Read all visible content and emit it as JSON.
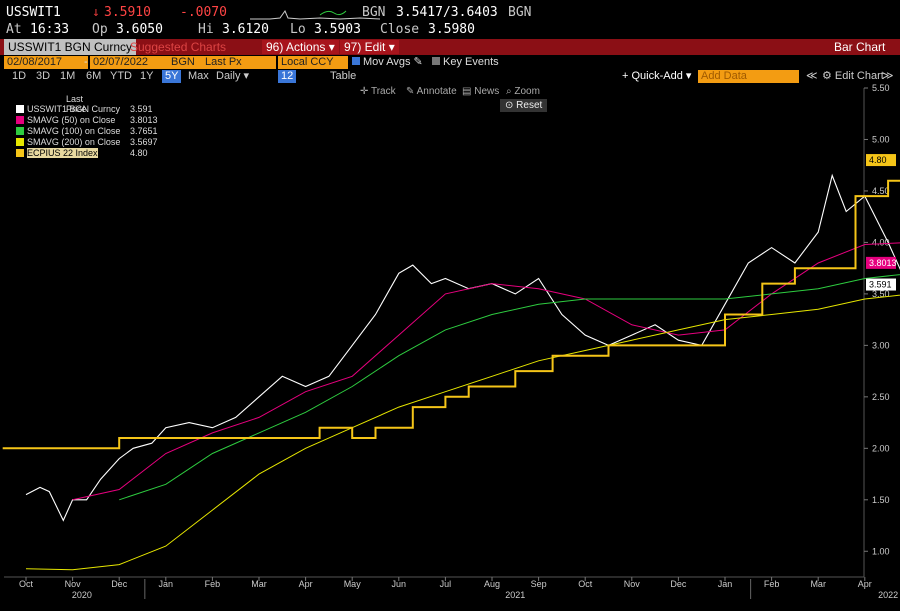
{
  "quote": {
    "ticker": "USSWIT1",
    "last": "3.5910",
    "change": "-.0070",
    "source": "BGN",
    "bid_ask": "3.5417/3.6403",
    "source2": "BGN",
    "at_label": "At",
    "time": "16:33",
    "op_label": "Op",
    "open": "3.6050",
    "hi_label": "Hi",
    "high": "3.6120",
    "lo_label": "Lo",
    "low": "3.5903",
    "close_label": "Close",
    "close": "3.5980"
  },
  "toolbar": {
    "security": "USSWIT1 BGN Curncy",
    "suggested": "Suggested Charts",
    "actions": "96) Actions ▾",
    "edit": "97) Edit ▾",
    "chart_type": "Bar Chart"
  },
  "controls": {
    "start_date": "02/08/2017",
    "end_date": "02/07/2022",
    "source": "BGN",
    "field": "Last Px",
    "currency": "Local CCY",
    "mov_avgs": "Mov Avgs",
    "key_events": "Key Events"
  },
  "periods": [
    "1D",
    "3D",
    "1M",
    "6M",
    "YTD",
    "1Y",
    "5Y",
    "Max"
  ],
  "selected_period": "5Y",
  "frequency": "Daily ▾",
  "freq_num": "12",
  "table_label": "Table",
  "quick_add": "+ Quick-Add ▾",
  "add_data": "Add Data",
  "edit_chart": "⚙ Edit Chart",
  "chart_tools": {
    "track": "Track",
    "annotate": "Annotate",
    "news": "News",
    "zoom": "Zoom",
    "reset": "Reset"
  },
  "legend": {
    "header": "Last Price",
    "items": [
      {
        "label": "USSWIT1 BGN Curncy",
        "value": "3.591",
        "color": "#ffffff"
      },
      {
        "label": "SMAVG (50)  on Close",
        "value": "3.8013",
        "color": "#e6007e"
      },
      {
        "label": "SMAVG (100)  on Close",
        "value": "3.7651",
        "color": "#2ecc40"
      },
      {
        "label": "SMAVG (200)  on Close",
        "value": "3.5697",
        "color": "#e6e600"
      },
      {
        "label": "ECPIUS 22 Index",
        "value": "4.80",
        "color": "#f5c518"
      }
    ]
  },
  "annotation": "1.19",
  "last_tags": {
    "cpi": "4.80",
    "sma50": "3.8013",
    "price": "3.591"
  },
  "chart_data": {
    "type": "line",
    "title": "",
    "xlabel": "",
    "ylabel": "",
    "ylim": [
      0.75,
      5.5
    ],
    "y_ticks": [
      "5.50",
      "5.00",
      "4.50",
      "4.00",
      "3.50",
      "3.00",
      "2.50",
      "2.00",
      "1.50",
      "1.00"
    ],
    "x_ticks": [
      "Oct",
      "Nov",
      "Dec",
      "Jan",
      "Feb",
      "Mar",
      "Apr",
      "May",
      "Jun",
      "Jul",
      "Aug",
      "Sep",
      "Oct",
      "Nov",
      "Dec",
      "Jan",
      "Feb",
      "Mar",
      "Apr"
    ],
    "year_labels": [
      "2020",
      "2021",
      "2022"
    ],
    "series": [
      {
        "name": "USSWIT1 BGN Curncy",
        "color": "#ffffff",
        "points": [
          [
            0,
            1.55
          ],
          [
            0.3,
            1.62
          ],
          [
            0.5,
            1.58
          ],
          [
            0.8,
            1.3
          ],
          [
            1,
            1.5
          ],
          [
            1.3,
            1.5
          ],
          [
            1.6,
            1.7
          ],
          [
            2,
            1.9
          ],
          [
            2.3,
            2.0
          ],
          [
            2.7,
            2.05
          ],
          [
            3,
            2.2
          ],
          [
            3.5,
            2.25
          ],
          [
            4,
            2.2
          ],
          [
            4.5,
            2.3
          ],
          [
            5,
            2.5
          ],
          [
            5.5,
            2.7
          ],
          [
            6,
            2.6
          ],
          [
            6.5,
            2.7
          ],
          [
            7,
            3.0
          ],
          [
            7.5,
            3.3
          ],
          [
            8,
            3.7
          ],
          [
            8.3,
            3.78
          ],
          [
            8.7,
            3.6
          ],
          [
            9,
            3.65
          ],
          [
            9.5,
            3.55
          ],
          [
            10,
            3.6
          ],
          [
            10.5,
            3.5
          ],
          [
            11,
            3.65
          ],
          [
            11.5,
            3.3
          ],
          [
            12,
            3.1
          ],
          [
            12.5,
            3.0
          ],
          [
            13,
            3.1
          ],
          [
            13.5,
            3.2
          ],
          [
            14,
            3.05
          ],
          [
            14.5,
            3.0
          ],
          [
            15,
            3.4
          ],
          [
            15.5,
            3.8
          ],
          [
            16,
            3.95
          ],
          [
            16.5,
            3.8
          ],
          [
            17,
            4.1
          ],
          [
            17.3,
            4.65
          ],
          [
            17.6,
            4.3
          ],
          [
            18,
            4.45
          ],
          [
            18.5,
            4.0
          ],
          [
            18.8,
            3.7
          ],
          [
            19.2,
            3.85
          ],
          [
            19.5,
            3.8
          ],
          [
            20,
            3.9
          ],
          [
            20.4,
            3.7
          ],
          [
            20.8,
            3.65
          ],
          [
            21,
            3.6
          ],
          [
            21.3,
            3.591
          ]
        ]
      },
      {
        "name": "SMAVG (50)  on Close",
        "color": "#e6007e",
        "points": [
          [
            1,
            1.5
          ],
          [
            2,
            1.6
          ],
          [
            3,
            1.95
          ],
          [
            4,
            2.15
          ],
          [
            5,
            2.3
          ],
          [
            6,
            2.55
          ],
          [
            7,
            2.7
          ],
          [
            8,
            3.1
          ],
          [
            9,
            3.5
          ],
          [
            10,
            3.6
          ],
          [
            11,
            3.55
          ],
          [
            12,
            3.45
          ],
          [
            13,
            3.2
          ],
          [
            14,
            3.1
          ],
          [
            15,
            3.15
          ],
          [
            16,
            3.5
          ],
          [
            17,
            3.8
          ],
          [
            18,
            3.98
          ],
          [
            19,
            4.0
          ],
          [
            20,
            3.95
          ],
          [
            21,
            3.8013
          ]
        ]
      },
      {
        "name": "SMAVG (100)  on Close",
        "color": "#2ecc40",
        "points": [
          [
            2,
            1.5
          ],
          [
            3,
            1.65
          ],
          [
            4,
            1.95
          ],
          [
            5,
            2.15
          ],
          [
            6,
            2.35
          ],
          [
            7,
            2.6
          ],
          [
            8,
            2.9
          ],
          [
            9,
            3.15
          ],
          [
            10,
            3.3
          ],
          [
            11,
            3.4
          ],
          [
            12,
            3.45
          ],
          [
            13,
            3.45
          ],
          [
            14,
            3.45
          ],
          [
            15,
            3.45
          ],
          [
            16,
            3.5
          ],
          [
            17,
            3.55
          ],
          [
            18,
            3.65
          ],
          [
            19,
            3.7
          ],
          [
            20,
            3.72
          ],
          [
            21,
            3.7651
          ]
        ]
      },
      {
        "name": "SMAVG (200)  on Close",
        "color": "#e6e600",
        "points": [
          [
            0,
            0.83
          ],
          [
            1,
            0.82
          ],
          [
            2,
            0.87
          ],
          [
            3,
            1.05
          ],
          [
            4,
            1.4
          ],
          [
            5,
            1.75
          ],
          [
            6,
            2.0
          ],
          [
            7,
            2.2
          ],
          [
            8,
            2.4
          ],
          [
            9,
            2.55
          ],
          [
            10,
            2.7
          ],
          [
            11,
            2.85
          ],
          [
            12,
            2.95
          ],
          [
            13,
            3.05
          ],
          [
            14,
            3.15
          ],
          [
            15,
            3.25
          ],
          [
            16,
            3.3
          ],
          [
            17,
            3.35
          ],
          [
            18,
            3.45
          ],
          [
            19,
            3.5
          ],
          [
            20,
            3.53
          ],
          [
            21,
            3.5697
          ]
        ]
      },
      {
        "name": "ECPIUS 22 Index",
        "color": "#f5c518",
        "step": true,
        "points": [
          [
            -0.5,
            2.0
          ],
          [
            2.0,
            2.0
          ],
          [
            2.0,
            2.1
          ],
          [
            6.3,
            2.1
          ],
          [
            6.3,
            2.2
          ],
          [
            7,
            2.2
          ],
          [
            7,
            2.1
          ],
          [
            7.5,
            2.1
          ],
          [
            7.5,
            2.2
          ],
          [
            8.3,
            2.2
          ],
          [
            8.3,
            2.4
          ],
          [
            9,
            2.4
          ],
          [
            9,
            2.5
          ],
          [
            9.5,
            2.5
          ],
          [
            9.5,
            2.6
          ],
          [
            10.5,
            2.6
          ],
          [
            10.5,
            2.75
          ],
          [
            11.3,
            2.75
          ],
          [
            11.3,
            2.9
          ],
          [
            12.5,
            2.9
          ],
          [
            12.5,
            3.0
          ],
          [
            15,
            3.0
          ],
          [
            15,
            3.3
          ],
          [
            15.8,
            3.3
          ],
          [
            15.8,
            3.6
          ],
          [
            16.5,
            3.6
          ],
          [
            16.5,
            3.75
          ],
          [
            17.8,
            3.75
          ],
          [
            17.8,
            4.45
          ],
          [
            18.5,
            4.45
          ],
          [
            18.5,
            4.6
          ],
          [
            19.5,
            4.6
          ],
          [
            19.5,
            4.8
          ],
          [
            20.2,
            4.8
          ]
        ]
      }
    ]
  }
}
